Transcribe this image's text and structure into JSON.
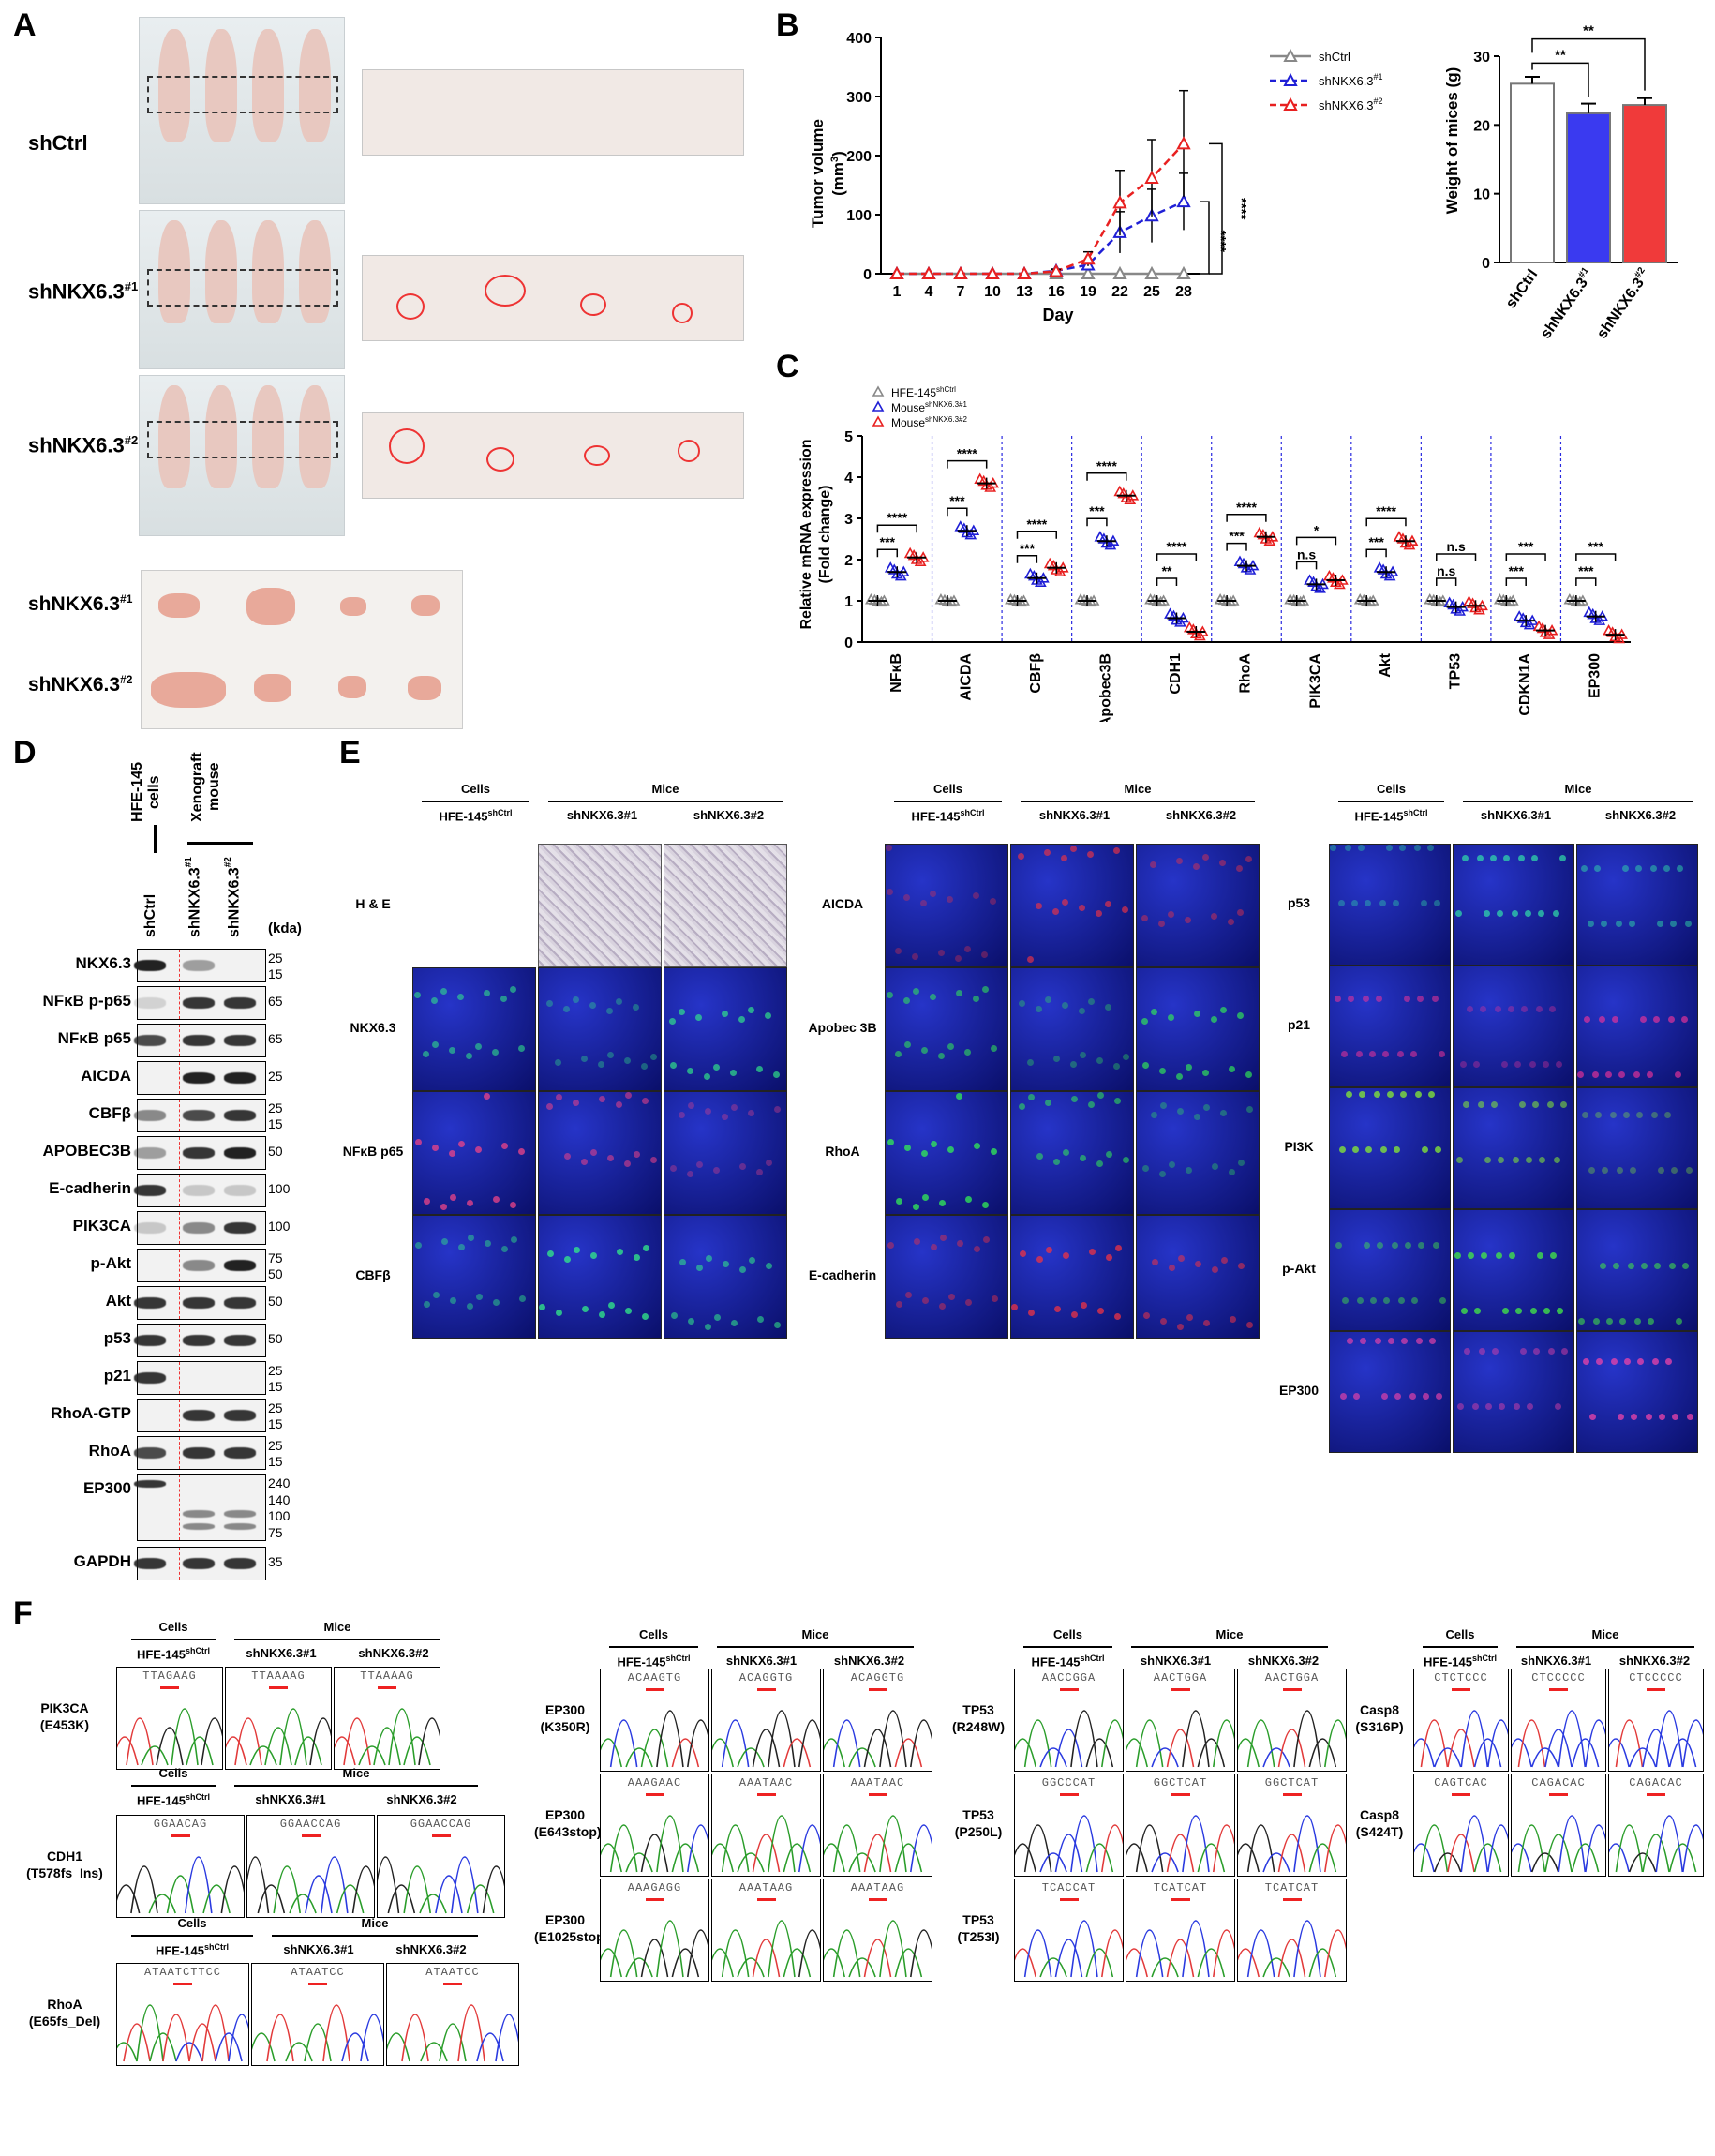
{
  "panels": {
    "a": "A",
    "b": "B",
    "c": "C",
    "d": "D",
    "e": "E",
    "f": "F"
  },
  "panel_a": {
    "groups": [
      "shCtrl",
      "shNKX6.3",
      "shNKX6.3"
    ],
    "sup": [
      "",
      "#1",
      "#2"
    ],
    "tumor_rows": [
      {
        "name": "shNKX6.3",
        "sup": "#1"
      },
      {
        "name": "shNKX6.3",
        "sup": "#2"
      }
    ]
  },
  "chart_data": [
    {
      "type": "line",
      "title": "",
      "xlabel": "Day",
      "ylabel": "Tumor volume (mm³)",
      "ylabel_main": "Tumor volume",
      "ylabel_unit": "(mm",
      "ylabel_unit_sup": "3",
      "ylabel_unit_end": ")",
      "x": [
        1,
        4,
        7,
        10,
        13,
        16,
        19,
        22,
        25,
        28
      ],
      "ylim": [
        0,
        400
      ],
      "yticks": [
        0,
        100,
        200,
        300,
        400
      ],
      "series": [
        {
          "name": "shCtrl",
          "name_sup": "",
          "color": "#888888",
          "values": [
            0,
            0,
            0,
            0,
            0,
            0,
            0,
            0,
            0,
            0
          ],
          "err": [
            0,
            0,
            0,
            0,
            0,
            0,
            0,
            0,
            0,
            0
          ]
        },
        {
          "name": "shNKX6.3",
          "name_sup": "#1",
          "color": "#1f1fd6",
          "values": [
            0,
            0,
            0,
            0,
            0,
            5,
            15,
            70,
            98,
            122
          ],
          "err": [
            0,
            0,
            0,
            0,
            0,
            3,
            8,
            35,
            45,
            48
          ]
        },
        {
          "name": "shNKX6.3",
          "name_sup": "#2",
          "color": "#e82020",
          "values": [
            0,
            0,
            0,
            0,
            0,
            4,
            25,
            120,
            162,
            220
          ],
          "err": [
            0,
            0,
            0,
            0,
            0,
            3,
            12,
            55,
            65,
            90
          ]
        }
      ],
      "sig": [
        "****",
        "****"
      ]
    },
    {
      "type": "bar",
      "title": "",
      "ylabel": "Weight of mices (g)",
      "ylim": [
        0,
        30
      ],
      "yticks": [
        0,
        10,
        20,
        30
      ],
      "categories": [
        "shCtrl",
        "shNKX6.3",
        "shNKX6.3"
      ],
      "cat_sup": [
        "",
        "#1",
        "#2"
      ],
      "values": [
        26,
        21.7,
        22.9
      ],
      "err": [
        1.0,
        1.4,
        1.0
      ],
      "colors": [
        "#ffffff",
        "#3a3af0",
        "#f03a3a"
      ],
      "sig": [
        "**",
        "**"
      ]
    },
    {
      "type": "scatter",
      "title": "",
      "ylabel": "Relative mRNA expression",
      "ylabel2": "(Fold change)",
      "ylim": [
        0,
        5
      ],
      "yticks": [
        0,
        1,
        2,
        3,
        4,
        5
      ],
      "genes": [
        "NFκB",
        "AICDA",
        "CBFβ",
        "Apobec3B",
        "CDH1",
        "RhoA",
        "PIK3CA",
        "Akt",
        "TP53",
        "CDKN1A",
        "EP300"
      ],
      "legend": [
        {
          "name": "HFE-145",
          "sup": "shCtrl",
          "color": "#888888"
        },
        {
          "name": "Mouse",
          "sup": "shNKX6.3#1",
          "color": "#1f1fd6"
        },
        {
          "name": "Mouse",
          "sup": "shNKX6.3#2",
          "color": "#e82020"
        }
      ],
      "series": [
        {
          "name": "HFE-145 shCtrl",
          "values": [
            1,
            1,
            1,
            1,
            1,
            1,
            1,
            1,
            1,
            1,
            1
          ]
        },
        {
          "name": "Mouse shNKX6.3#1",
          "values": [
            1.7,
            2.7,
            1.55,
            2.45,
            0.58,
            1.85,
            1.4,
            1.7,
            0.85,
            0.52,
            0.62
          ]
        },
        {
          "name": "Mouse shNKX6.3#2",
          "values": [
            2.05,
            3.85,
            1.8,
            3.55,
            0.25,
            2.55,
            1.5,
            2.45,
            0.88,
            0.28,
            0.18
          ]
        }
      ],
      "sig_low": [
        "***",
        "***",
        "***",
        "***",
        "**",
        "***",
        "n.s",
        "***",
        "n.s",
        "***",
        "***"
      ],
      "sig_high": [
        "****",
        "****",
        "****",
        "****",
        "****",
        "****",
        "*",
        "****",
        "n.s",
        "***",
        "***"
      ]
    }
  ],
  "panel_d": {
    "hdr_cells": "HFE-145 cells",
    "hdr_mouse": "Xenograft mouse",
    "lanes": [
      {
        "name": "shCtrl",
        "sup": ""
      },
      {
        "name": "shNKX6.3",
        "sup": "#1"
      },
      {
        "name": "shNKX6.3",
        "sup": "#2"
      }
    ],
    "kda_label": "(kda)",
    "blots": [
      {
        "label": "NKX6.3",
        "kda": [
          "25",
          "15"
        ],
        "bands": [
          1,
          0.4,
          0
        ]
      },
      {
        "label": "NFκB p-p65",
        "kda": [
          "65"
        ],
        "bands": [
          0.15,
          0.9,
          0.9
        ]
      },
      {
        "label": "NFκB p65",
        "kda": [
          "65"
        ],
        "bands": [
          0.8,
          0.9,
          0.9
        ]
      },
      {
        "label": "AICDA",
        "kda": [
          "25"
        ],
        "bands": [
          0,
          1,
          1
        ]
      },
      {
        "label": "CBFβ",
        "kda": [
          "25",
          "15"
        ],
        "bands": [
          0.5,
          0.8,
          0.9
        ]
      },
      {
        "label": "APOBEC3B",
        "kda": [
          "50"
        ],
        "bands": [
          0.4,
          0.9,
          1
        ]
      },
      {
        "label": "E-cadherin",
        "kda": [
          "100"
        ],
        "bands": [
          0.9,
          0.2,
          0.2
        ]
      },
      {
        "label": "PIK3CA",
        "kda": [
          "100"
        ],
        "bands": [
          0.2,
          0.5,
          0.9
        ]
      },
      {
        "label": "p-Akt",
        "kda": [
          "75",
          "50"
        ],
        "bands": [
          0,
          0.5,
          1
        ]
      },
      {
        "label": "Akt",
        "kda": [
          "50"
        ],
        "bands": [
          0.9,
          0.9,
          0.9
        ]
      },
      {
        "label": "p53",
        "kda": [
          "50"
        ],
        "bands": [
          0.9,
          0.9,
          0.9
        ]
      },
      {
        "label": "p21",
        "kda": [
          "25",
          "15"
        ],
        "bands": [
          0.9,
          0,
          0
        ]
      },
      {
        "label": "RhoA-GTP",
        "kda": [
          "25",
          "15"
        ],
        "bands": [
          0,
          0.9,
          0.9
        ]
      },
      {
        "label": "RhoA",
        "kda": [
          "25",
          "15"
        ],
        "bands": [
          0.8,
          0.9,
          0.9
        ]
      },
      {
        "label": "EP300",
        "kda": [
          "240",
          "140",
          "100",
          "75"
        ],
        "bands": [
          0.9,
          0.5,
          0.5
        ]
      },
      {
        "label": "GAPDH",
        "kda": [
          "35"
        ],
        "bands": [
          0.9,
          0.9,
          0.9
        ]
      }
    ]
  },
  "panel_e": {
    "hdr_cells": "Cells",
    "hdr_mice": "Mice",
    "col1": {
      "name": "HFE-145",
      "sup": "shCtrl"
    },
    "col2": "shNKX6.3#1",
    "col3": "shNKX6.3#2",
    "block1": [
      "H & E",
      "NKX6.3",
      "NFκB p65",
      "CBFβ"
    ],
    "block2": [
      "AICDA",
      "Apobec 3B",
      "RhoA",
      "E-cadherin"
    ],
    "block3": [
      "p53",
      "p21",
      "PI3K",
      "p-Akt",
      "EP300"
    ]
  },
  "panel_f": {
    "hdr_cells": "Cells",
    "hdr_mice": "Mice",
    "col1": {
      "name": "HFE-145",
      "sup": "shCtrl"
    },
    "col2": "shNKX6.3#1",
    "col3": "shNKX6.3#2",
    "groups": [
      {
        "label": "PIK3CA",
        "mut": "(E453K)",
        "seqs": [
          "TTAGAAG",
          "TTAAAAG",
          "TTAAAAG"
        ]
      },
      {
        "label": "CDH1",
        "mut": "(T578fs_Ins)",
        "seqs": [
          "GGAACAG",
          "GGAACCAG",
          "GGAACCAG"
        ]
      },
      {
        "label": "RhoA",
        "mut": "(E65fs_Del)",
        "seqs": [
          "ATAATCTTCC",
          "ATAATCC",
          "ATAATCC"
        ]
      },
      {
        "label": "EP300",
        "mut": "(K350R)",
        "seqs": [
          "ACAAGTG",
          "ACAGGTG",
          "ACAGGTG"
        ]
      },
      {
        "label": "EP300",
        "mut": "(E643stop)",
        "seqs": [
          "AAAGAAC",
          "AAATAAC",
          "AAATAAC"
        ]
      },
      {
        "label": "EP300",
        "mut": "(E1025stop)",
        "seqs": [
          "AAAGAGG",
          "AAATAAG",
          "AAATAAG"
        ]
      },
      {
        "label": "TP53",
        "mut": "(R248W)",
        "seqs": [
          "AACCGGA",
          "AACTGGA",
          "AACTGGA"
        ]
      },
      {
        "label": "TP53",
        "mut": "(P250L)",
        "seqs": [
          "GGCCCAT",
          "GGCTCAT",
          "GGCTCAT"
        ]
      },
      {
        "label": "TP53",
        "mut": "(T253I)",
        "seqs": [
          "TCACCAT",
          "TCATCAT",
          "TCATCAT"
        ]
      },
      {
        "label": "Casp8",
        "mut": "(S316P)",
        "seqs": [
          "CTCTCCC",
          "CTCCCCC",
          "CTCCCCC"
        ]
      },
      {
        "label": "Casp8",
        "mut": "(S424T)",
        "seqs": [
          "CAGTCAC",
          "CAGACAC",
          "CAGACAC"
        ]
      }
    ]
  }
}
